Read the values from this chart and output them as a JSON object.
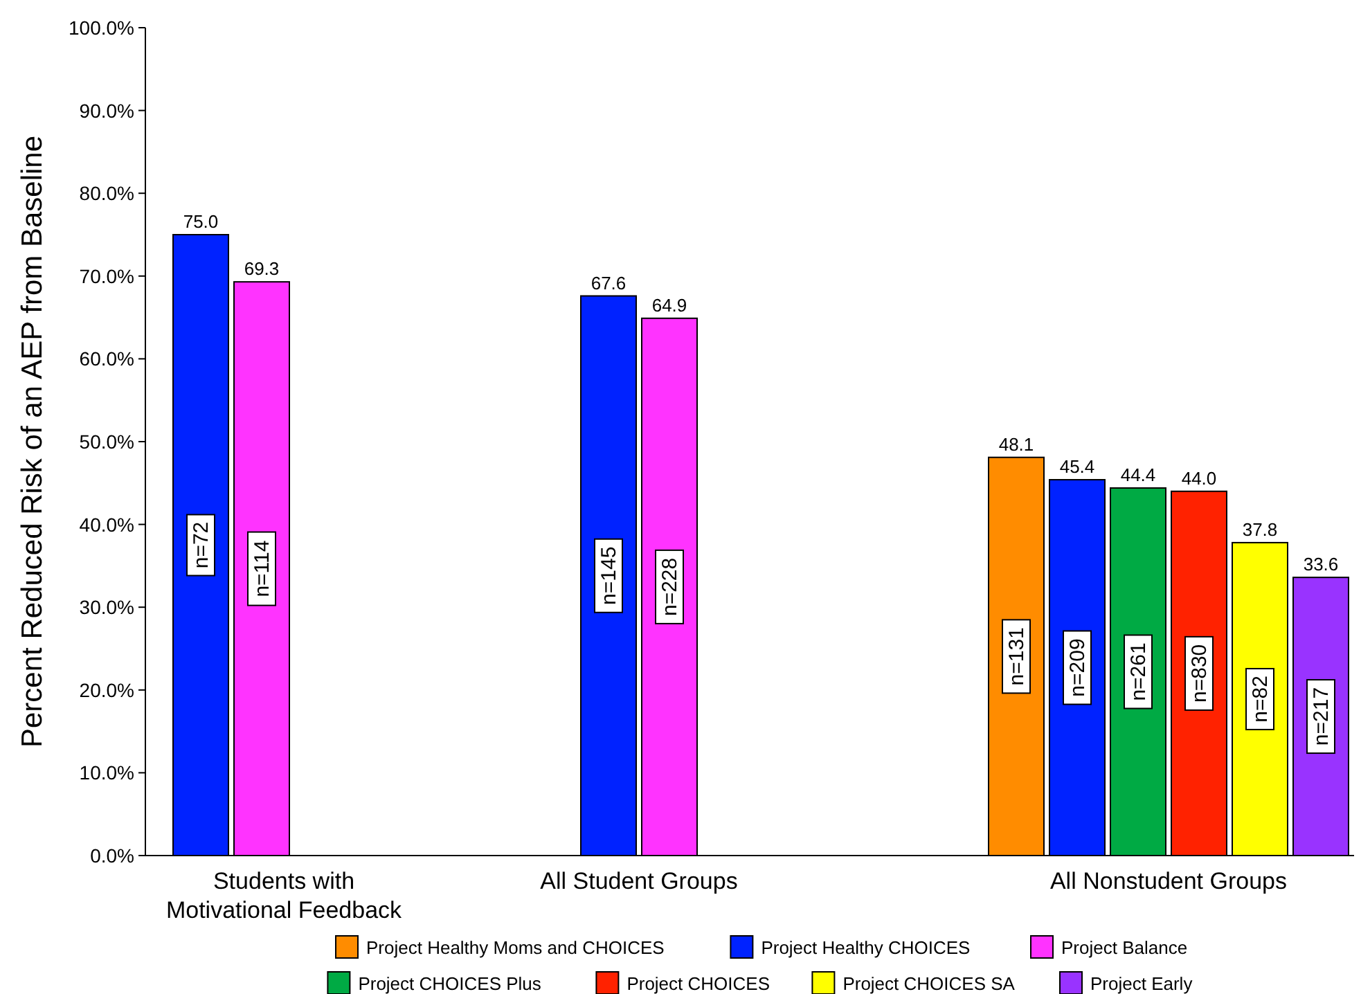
{
  "chart_data": {
    "type": "bar",
    "ylabel": "Percent Reduced Risk of an AEP from Baseline",
    "categories": [
      "Students with Motivational Feedback",
      "All Student Groups",
      "All Nonstudent Groups"
    ],
    "series": [
      {
        "name": "Project Healthy Moms and CHOICES",
        "color": "#ff8c00",
        "values": [
          null,
          null,
          48.1
        ],
        "value_labels": [
          null,
          null,
          "48.1"
        ]
      },
      {
        "name": "Project Healthy CHOICES",
        "color": "#0022ff",
        "values": [
          75.0,
          67.6,
          45.4
        ],
        "value_labels": [
          "75.0",
          "67.6",
          "45.4"
        ]
      },
      {
        "name": "Project Balance",
        "color": "#ff33ff",
        "values": [
          69.3,
          64.9,
          null
        ],
        "value_labels": [
          "69.3",
          "64.9",
          null
        ]
      },
      {
        "name": "Project CHOICES Plus",
        "color": "#00aa44",
        "values": [
          null,
          null,
          44.4
        ],
        "value_labels": [
          null,
          null,
          "44.4"
        ]
      },
      {
        "name": "Project CHOICES",
        "color": "#ff2200",
        "values": [
          null,
          null,
          44.0
        ],
        "value_labels": [
          null,
          null,
          "44.0"
        ]
      },
      {
        "name": "Project CHOICES SA",
        "color": "#ffff00",
        "values": [
          null,
          null,
          37.8
        ],
        "value_labels": [
          null,
          null,
          "37.8"
        ]
      },
      {
        "name": "Project Early",
        "color": "#9933ff",
        "values": [
          null,
          null,
          33.6
        ],
        "value_labels": [
          null,
          null,
          "33.6"
        ]
      }
    ],
    "annotations": [
      "n=72",
      "n=114",
      "n=145",
      "n=228",
      "n=131",
      "n=209",
      "n=261",
      "n=830",
      "n=82",
      "n=217"
    ],
    "ylim": [
      0,
      100
    ],
    "yticks": [
      {
        "value": 0,
        "label": "0.0%"
      },
      {
        "value": 10,
        "label": "10.0%"
      },
      {
        "value": 20,
        "label": "20.0%"
      },
      {
        "value": 30,
        "label": "30.0%"
      },
      {
        "value": 40,
        "label": "40.0%"
      },
      {
        "value": 50,
        "label": "50.0%"
      },
      {
        "value": 60,
        "label": "60.0%"
      },
      {
        "value": 70,
        "label": "70.0%"
      },
      {
        "value": 80,
        "label": "80.0%"
      },
      {
        "value": 90,
        "label": "90.0%"
      },
      {
        "value": 100,
        "label": "100.0%"
      }
    ],
    "grid": false,
    "legend": "bottom"
  }
}
